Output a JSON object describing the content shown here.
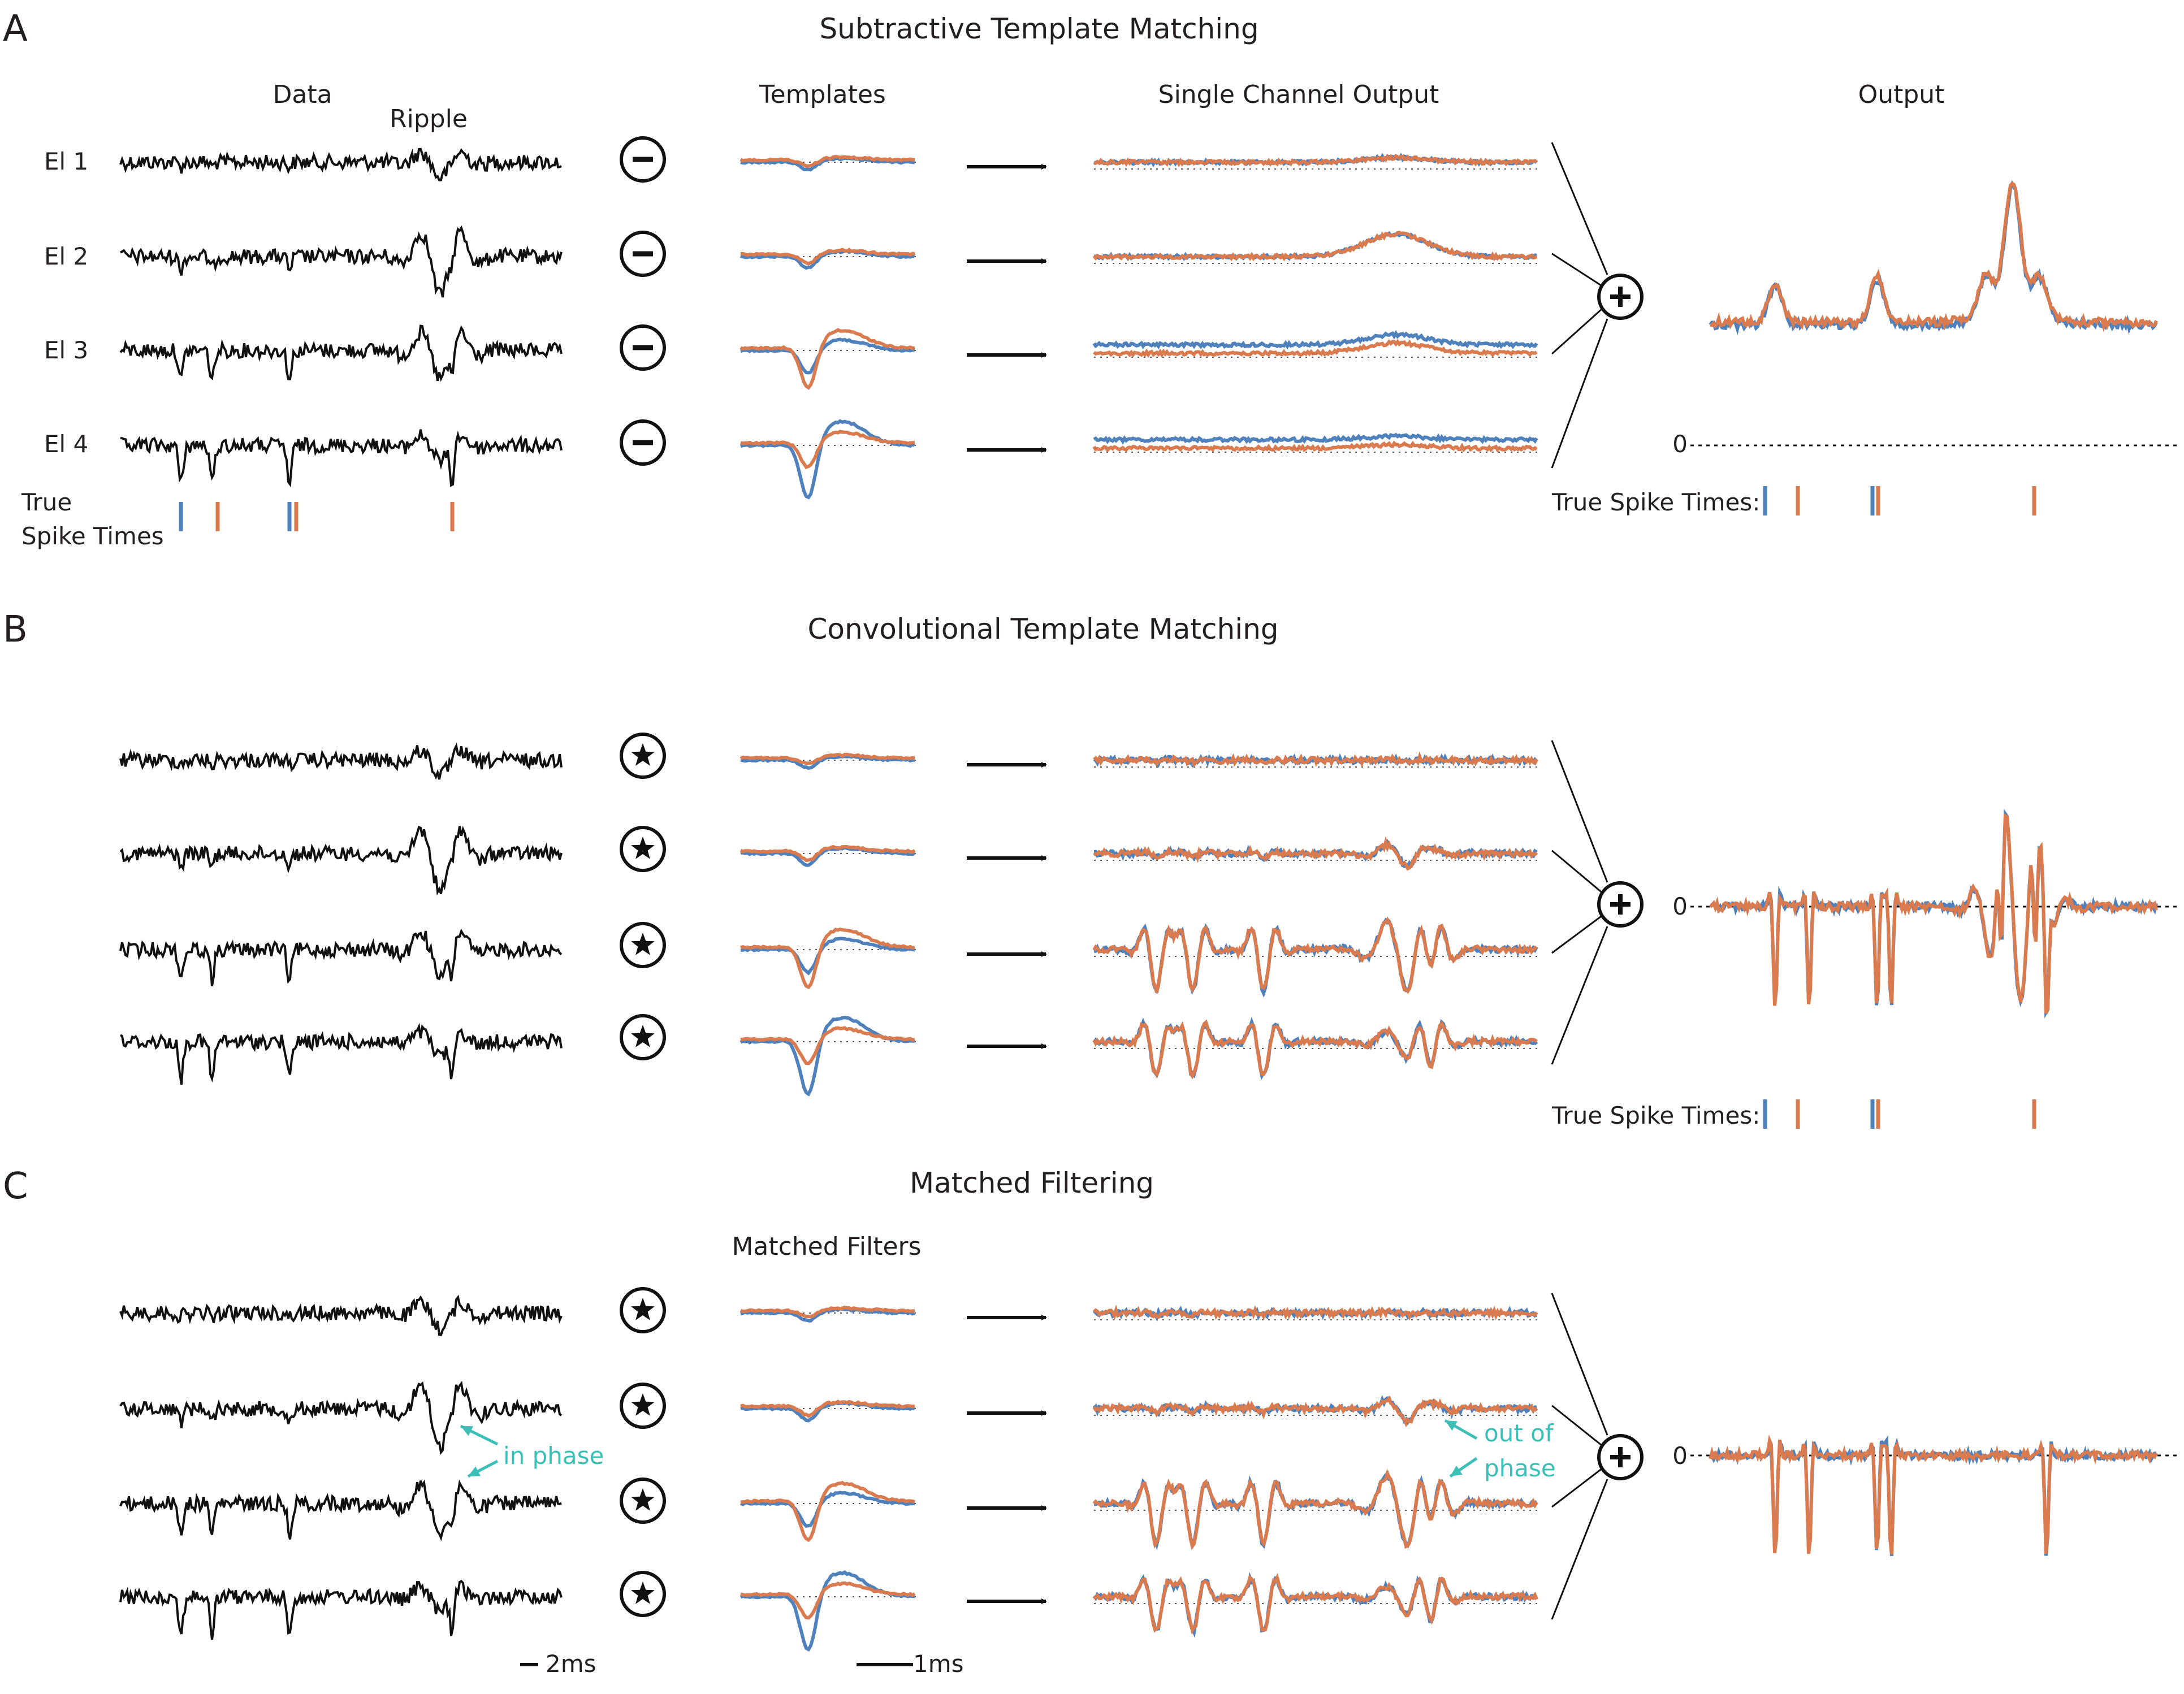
{
  "colors": {
    "blue": "#4f82bd",
    "orange": "#d97b4f",
    "black": "#111111",
    "cyan": "#3cbfb7",
    "dotted": "#555555"
  },
  "panels": [
    {
      "letter": "A",
      "title": "Subtractive Template Matching",
      "columns": {
        "data": "Data",
        "ripple": "Ripple",
        "templates": "Templates",
        "single_channel": "Single Channel Output",
        "output": "Output"
      },
      "electrodes": [
        "El 1",
        "El 2",
        "El 3",
        "El 4"
      ],
      "operator": "minus",
      "true_spikes": {
        "line1": "True",
        "line2": "Spike Times"
      },
      "output_zero": "0",
      "output_true_spikes": "True Spike Times:"
    },
    {
      "letter": "B",
      "title": "Convolutional Template Matching",
      "operator": "star",
      "output_zero": "0",
      "output_true_spikes": "True Spike Times:"
    },
    {
      "letter": "C",
      "title": "Matched Filtering",
      "templates_heading": "Matched Filters",
      "operator": "star",
      "output_zero": "0",
      "annotations": {
        "in_phase": "in phase",
        "out_of_line1": "out of",
        "out_of_line2": "phase"
      }
    }
  ],
  "combine_symbol": "plus",
  "scale_bars": {
    "data": "2ms",
    "templates": "1ms"
  },
  "icons": [
    "minus-circle-icon",
    "star-circle-icon",
    "plus-circle-icon",
    "arrow-right-icon",
    "cyan-arrow-icon"
  ]
}
